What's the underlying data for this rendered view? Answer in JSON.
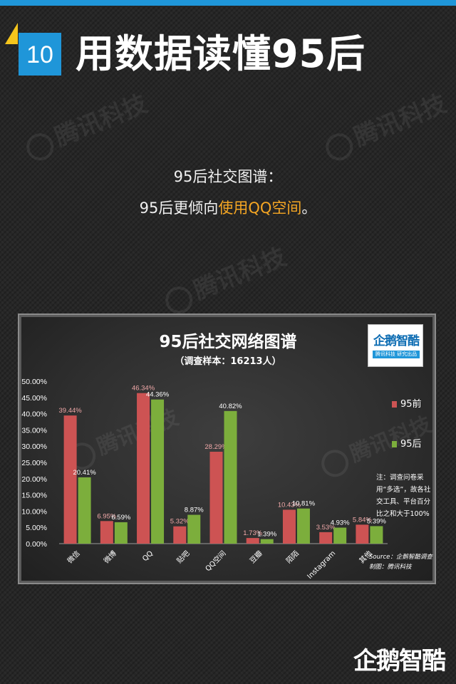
{
  "header": {
    "number": "10",
    "title": "用数据读懂95后"
  },
  "watermark": {
    "text": "腾讯科技"
  },
  "subtitle": {
    "line1": "95后社交图谱：",
    "line2_prefix": "95后更倾向",
    "line2_highlight": "使用QQ空间",
    "line2_suffix": "。"
  },
  "logo": {
    "text": "企鹅智酷",
    "bar": "腾讯科技  研究出品"
  },
  "note": "注：调查问卷采用“多选”，故各社交工具、平台百分比之和大于100%",
  "source": {
    "line1": "Source：企鹅智酷调查",
    "line2": "制图：腾讯科技"
  },
  "brand": "企鹅智酷",
  "colors": {
    "accent": "#1f96d9",
    "highlight": "#f5a623",
    "series_95_before": "#cd5353",
    "series_95_after": "#7cae3c"
  },
  "chart_data": {
    "type": "bar",
    "title": "95后社交网络图谱",
    "subtitle": "（调查样本：16213人）",
    "categories": [
      "微信",
      "微博",
      "QQ",
      "贴吧",
      "QQ空间",
      "豆瓣",
      "陌陌",
      "Instagram",
      "其他"
    ],
    "series": [
      {
        "name": "95前",
        "values": [
          39.44,
          6.95,
          46.34,
          5.32,
          28.29,
          1.73,
          10.43,
          3.53,
          5.84
        ],
        "labels": [
          "39.44%",
          "6.95%",
          "46.34%",
          "5.32%",
          "28.29%",
          "1.73%",
          "10.43%",
          "3.53%",
          "5.84%"
        ]
      },
      {
        "name": "95后",
        "values": [
          20.41,
          6.59,
          44.36,
          8.87,
          40.82,
          1.39,
          10.81,
          4.93,
          5.39
        ],
        "labels": [
          "20.41%",
          "6.59%",
          "44.36%",
          "8.87%",
          "40.82%",
          "1.39%",
          "10.81%",
          "4.93%",
          "5.39%"
        ]
      }
    ],
    "ylim": [
      0,
      50
    ],
    "yticks": [
      "0.00%",
      "5.00%",
      "10.00%",
      "15.00%",
      "20.00%",
      "25.00%",
      "30.00%",
      "35.00%",
      "40.00%",
      "45.00%",
      "50.00%"
    ],
    "legend": "right",
    "grid": false
  }
}
